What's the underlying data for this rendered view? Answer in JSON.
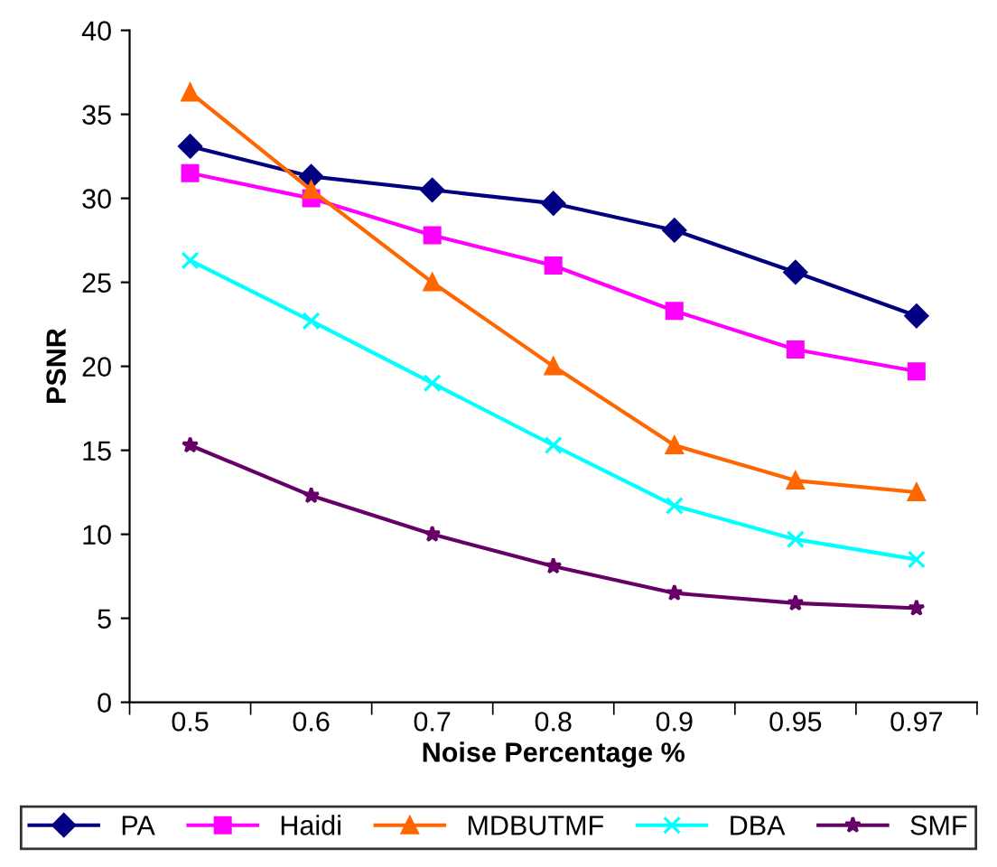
{
  "chart_data": {
    "type": "line",
    "xlabel": "Noise Percentage %",
    "ylabel": "PSNR",
    "categories": [
      "0.5",
      "0.6",
      "0.7",
      "0.8",
      "0.9",
      "0.95",
      "0.97"
    ],
    "ylim": [
      0,
      40
    ],
    "yticks": [
      0,
      5,
      10,
      15,
      20,
      25,
      30,
      35,
      40
    ],
    "grid": false,
    "legend": "bottom",
    "line_style": "solid",
    "series": [
      {
        "name": "PA",
        "color": "#000080",
        "marker": "diamond",
        "values": [
          33.1,
          31.3,
          30.5,
          29.7,
          28.1,
          25.6,
          23.0
        ]
      },
      {
        "name": "Haidi",
        "color": "#ff00ff",
        "marker": "square",
        "values": [
          31.5,
          30.0,
          27.8,
          26.0,
          23.3,
          21.0,
          19.7
        ]
      },
      {
        "name": "MDBUTMF",
        "color": "#ff6600",
        "marker": "triangle",
        "values": [
          36.3,
          30.5,
          25.0,
          20.0,
          15.3,
          13.2,
          12.5
        ]
      },
      {
        "name": "DBA",
        "color": "#00ffff",
        "marker": "cross",
        "values": [
          26.3,
          22.7,
          19.0,
          15.3,
          11.7,
          9.7,
          8.5
        ]
      },
      {
        "name": "SMF",
        "color": "#660066",
        "marker": "star",
        "values": [
          15.3,
          12.3,
          10.0,
          8.1,
          6.5,
          5.9,
          5.6
        ]
      }
    ]
  }
}
